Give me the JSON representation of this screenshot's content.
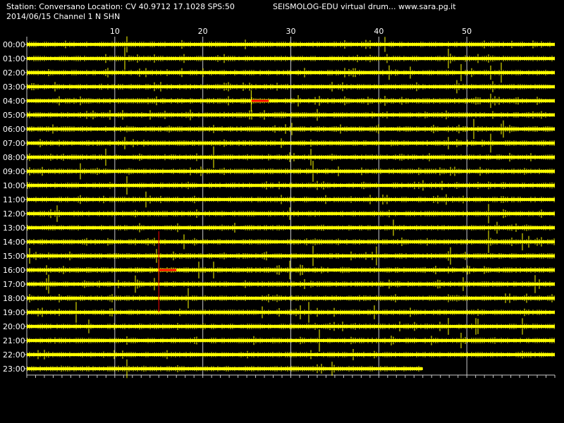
{
  "header": {
    "station_line": "Station: Conversano Location: CV 40.9712 17.1028 SPS:50",
    "title": "SEISMOLOG-EDU virtual drum... www.sara.pg.it",
    "date_line": "2014/06/15  Channel 1 N SHN"
  },
  "colors": {
    "background": "#000000",
    "trace": "#ffff00",
    "grid": "#c8c8c8",
    "event_marker": "#ff0000",
    "text": "#ffffff"
  },
  "chart_data": {
    "type": "line",
    "title": "",
    "xlabel": "",
    "ylabel": "",
    "x_range_minutes": [
      0,
      60
    ],
    "x_ticks": [
      "10",
      "20",
      "30",
      "40",
      "50"
    ],
    "x_tick_values": [
      10,
      20,
      30,
      40,
      50
    ],
    "rows": [
      "00:00",
      "01:00",
      "02:00",
      "03:00",
      "04:00",
      "05:00",
      "06:00",
      "07:00",
      "08:00",
      "09:00",
      "10:00",
      "11:00",
      "12:00",
      "13:00",
      "14:00",
      "15:00",
      "16:00",
      "17:00",
      "18:00",
      "19:00",
      "20:00",
      "21:00",
      "22:00",
      "23:00"
    ],
    "last_row_end_minute": 45,
    "grid": true,
    "event_markers": [
      {
        "row": "04:00",
        "minute": 25.5,
        "length_minutes": 2
      },
      {
        "row": "16:00",
        "minute": 15,
        "length_minutes": 2
      }
    ]
  }
}
